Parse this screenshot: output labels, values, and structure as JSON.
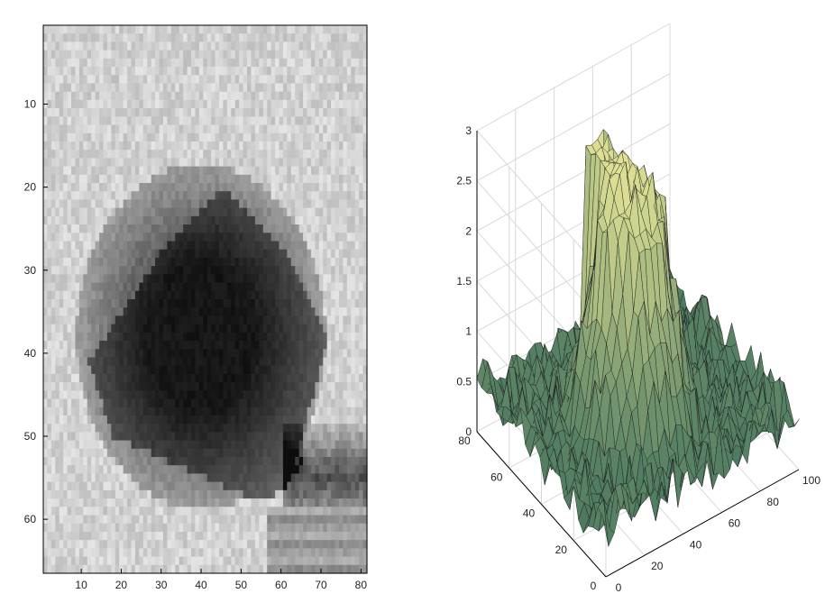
{
  "chart_data": [
    {
      "type": "heatmap",
      "colormap": "gray",
      "x_ticks": [
        10,
        20,
        30,
        40,
        50,
        60,
        70,
        80
      ],
      "y_ticks": [
        10,
        20,
        30,
        40,
        50,
        60
      ],
      "xlim": [
        0.5,
        81.5
      ],
      "ylim": [
        66.5,
        0.5
      ],
      "title": "",
      "xlabel": "",
      "ylabel": ""
    },
    {
      "type": "surface",
      "colormap": "green-yellow",
      "x_ticks": [
        0,
        20,
        40,
        60,
        80,
        100
      ],
      "y_ticks": [
        0,
        20,
        40,
        60,
        80
      ],
      "z_ticks": [
        0,
        0.5,
        1,
        1.5,
        2,
        2.5,
        3
      ],
      "xlim": [
        0,
        100
      ],
      "ylim": [
        0,
        80
      ],
      "zlim": [
        0,
        3
      ],
      "grid": true,
      "title": "",
      "xlabel": "",
      "ylabel": "",
      "zlabel": ""
    }
  ]
}
